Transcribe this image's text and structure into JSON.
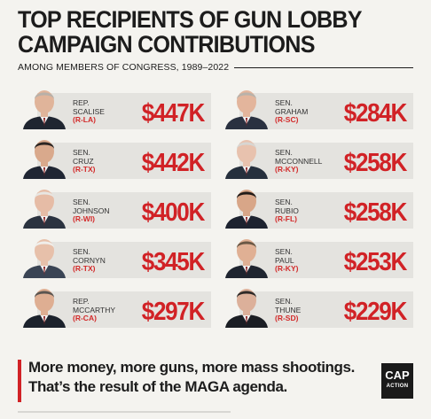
{
  "header": {
    "title_line1": "TOP RECIPIENTS OF GUN LOBBY",
    "title_line2": "CAMPAIGN CONTRIBUTIONS",
    "subtitle": "AMONG MEMBERS OF CONGRESS, 1989–2022"
  },
  "colors": {
    "accent_red": "#d12226",
    "text_dark": "#1c1c1c",
    "card_bg": "#e4e3df",
    "page_bg": "#f4f3ef"
  },
  "recipients_left": [
    {
      "title": "REP.",
      "name": "SCALISE",
      "party": "(R-LA)",
      "amount": "$447K",
      "suit": "#1f2530",
      "skin": "#e0b49a",
      "hair": "#b8b0a8"
    },
    {
      "title": "SEN.",
      "name": "CRUZ",
      "party": "(R-TX)",
      "amount": "$442K",
      "suit": "#202633",
      "skin": "#d9a98c",
      "hair": "#2b2522"
    },
    {
      "title": "SEN.",
      "name": "JOHNSON",
      "party": "(R-WI)",
      "amount": "$400K",
      "suit": "#2b3340",
      "skin": "#e6bca6",
      "hair": "#e8e6e2"
    },
    {
      "title": "SEN.",
      "name": "CORNYN",
      "party": "(R-TX)",
      "amount": "$345K",
      "suit": "#3a4454",
      "skin": "#e7c0aa",
      "hair": "#f0eeea"
    },
    {
      "title": "REP.",
      "name": "MCCARTHY",
      "party": "(R-CA)",
      "amount": "$297K",
      "suit": "#1c222c",
      "skin": "#deae92",
      "hair": "#5b5550"
    }
  ],
  "recipients_right": [
    {
      "title": "SEN.",
      "name": "GRAHAM",
      "party": "(R-SC)",
      "amount": "$284K",
      "suit": "#2a3140",
      "skin": "#e3b59c",
      "hair": "#b9b2aa"
    },
    {
      "title": "SEN.",
      "name": "MCCONNELL",
      "party": "(R-KY)",
      "amount": "$258K",
      "suit": "#26303d",
      "skin": "#e8c2ae",
      "hair": "#d8d6d2"
    },
    {
      "title": "SEN.",
      "name": "RUBIO",
      "party": "(R-FL)",
      "amount": "$258K",
      "suit": "#1d2330",
      "skin": "#d8a688",
      "hair": "#221c19"
    },
    {
      "title": "SEN.",
      "name": "PAUL",
      "party": "(R-KY)",
      "amount": "$253K",
      "suit": "#1f2530",
      "skin": "#e0b094",
      "hair": "#6a5845"
    },
    {
      "title": "SEN.",
      "name": "THUNE",
      "party": "(R-SD)",
      "amount": "$229K",
      "suit": "#1b1e24",
      "skin": "#dcb09a",
      "hair": "#2e2a28"
    }
  ],
  "footer": {
    "tagline_line1": "More money, more guns, more mass shootings.",
    "tagline_line2": "That’s the result of the MAGA agenda.",
    "logo_line1": "CAP",
    "logo_line2": "ACTION"
  }
}
